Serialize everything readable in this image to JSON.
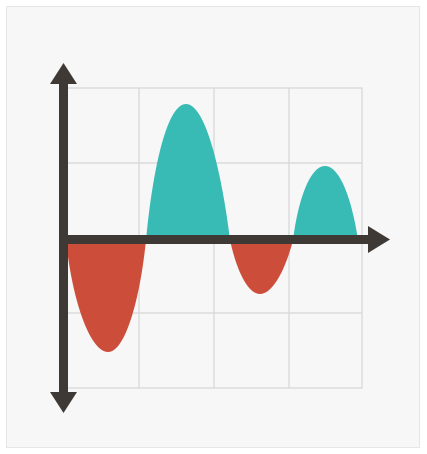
{
  "icon": {
    "name": "wave-chart-icon",
    "colors": {
      "background": "#f7f7f7",
      "grid": "#d6d6d6",
      "axis": "#3f3936",
      "positive": "#38bab5",
      "negative": "#cc4e3a"
    },
    "waves": [
      {
        "name": "negative-lobe-1",
        "sign": "negative",
        "amplitude": -0.75
      },
      {
        "name": "positive-lobe-1",
        "sign": "positive",
        "amplitude": 0.9
      },
      {
        "name": "negative-lobe-2",
        "sign": "negative",
        "amplitude": -0.35
      },
      {
        "name": "positive-lobe-2",
        "sign": "positive",
        "amplitude": 0.5
      }
    ]
  }
}
